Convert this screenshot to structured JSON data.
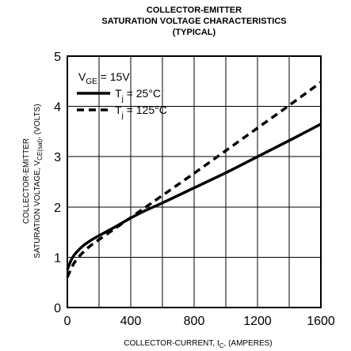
{
  "chart_data": {
    "type": "line",
    "title_lines": [
      "COLLECTOR-EMITTER",
      "SATURATION VOLTAGE CHARACTERISTICS",
      "(TYPICAL)"
    ],
    "xlabel": {
      "main": "COLLECTOR-CURRENT, I",
      "sub": "C",
      "tail": ", (AMPERES)"
    },
    "ylabel": {
      "line1": "COLLECTOR-EMITTER",
      "line2_main": "SATURATION VOLTAGE, V",
      "line2_sub": "CE(sat)",
      "line2_tail": ", (VOLTS)"
    },
    "xlim": [
      0,
      1600
    ],
    "ylim": [
      0,
      5
    ],
    "xticks": [
      0,
      400,
      800,
      1200,
      1600
    ],
    "yticks": [
      0,
      1,
      2,
      3,
      4,
      5
    ],
    "grid": true,
    "legend": {
      "placement": "top-left",
      "heading_main": "V",
      "heading_sub": "GE",
      "heading_tail": " = 15V"
    },
    "series": [
      {
        "name_main": "T",
        "name_sub": "j",
        "name_tail": " = 25°C",
        "style": "solid",
        "x": [
          0,
          25,
          50,
          100,
          150,
          200,
          300,
          400,
          500,
          600,
          800,
          1000,
          1200,
          1400,
          1600
        ],
        "y": [
          0.75,
          0.95,
          1.07,
          1.23,
          1.34,
          1.43,
          1.6,
          1.78,
          1.94,
          2.08,
          2.38,
          2.68,
          3.0,
          3.32,
          3.65
        ]
      },
      {
        "name_main": "T",
        "name_sub": "j",
        "name_tail": " = 125°C",
        "style": "dashed",
        "x": [
          0,
          25,
          50,
          100,
          150,
          200,
          300,
          400,
          500,
          600,
          800,
          1000,
          1200,
          1400,
          1600
        ],
        "y": [
          0.6,
          0.78,
          0.92,
          1.1,
          1.24,
          1.35,
          1.57,
          1.79,
          2.01,
          2.23,
          2.67,
          3.12,
          3.57,
          4.02,
          4.48
        ]
      }
    ]
  },
  "colors": {
    "line": "#000000",
    "background": "#ffffff"
  }
}
